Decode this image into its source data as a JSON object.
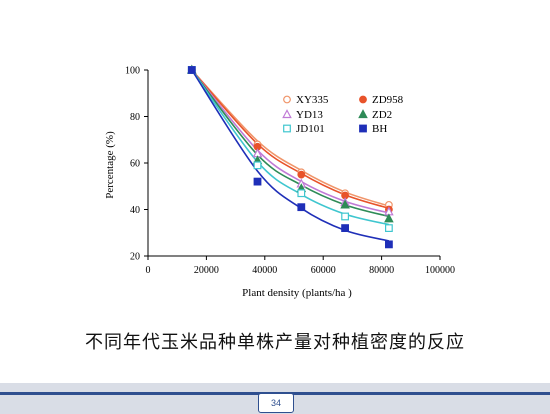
{
  "chart_data": {
    "type": "scatter",
    "title": "",
    "xlabel": "Plant density (plants/ha )",
    "ylabel": "Percentage (%)",
    "xlim": [
      0,
      100000
    ],
    "ylim": [
      20,
      100
    ],
    "xticks": [
      0,
      20000,
      40000,
      60000,
      80000,
      100000
    ],
    "yticks": [
      20,
      40,
      60,
      80,
      100
    ],
    "grid": false,
    "legend_placement": "top-right",
    "series": [
      {
        "name": "XY335",
        "marker": "open-circle",
        "color": "#f0956a",
        "x": [
          15000,
          37500,
          52500,
          67500,
          82500
        ],
        "y": [
          100,
          68,
          56,
          47,
          42
        ],
        "fit_y": [
          100,
          69.5,
          56.8,
          47.5,
          41.5
        ]
      },
      {
        "name": "ZD958",
        "marker": "filled-circle",
        "color": "#e8532a",
        "x": [
          15000,
          37500,
          52500,
          67500,
          82500
        ],
        "y": [
          100,
          67,
          55,
          46,
          40
        ],
        "fit_y": [
          100,
          68.2,
          55.5,
          46.3,
          40.5
        ]
      },
      {
        "name": "YD13",
        "marker": "open-triangle",
        "color": "#c07ad6",
        "x": [
          15000,
          37500,
          52500,
          67500,
          82500
        ],
        "y": [
          100,
          64,
          51,
          43,
          39
        ],
        "fit_y": [
          100,
          65.5,
          52,
          43.5,
          38.5
        ]
      },
      {
        "name": "ZD2",
        "marker": "filled-triangle",
        "color": "#2e8b57",
        "x": [
          15000,
          37500,
          52500,
          67500,
          82500
        ],
        "y": [
          100,
          61,
          49,
          42,
          36
        ],
        "fit_y": [
          100,
          63.5,
          50.5,
          42,
          37
        ]
      },
      {
        "name": "JD101",
        "marker": "open-square",
        "color": "#3fc6cf",
        "x": [
          15000,
          37500,
          52500,
          67500,
          82500
        ],
        "y": [
          100,
          59,
          47,
          37,
          32
        ],
        "fit_y": [
          100,
          60.5,
          46.5,
          38,
          33.5
        ]
      },
      {
        "name": "BH",
        "marker": "filled-square",
        "color": "#1f2fb8",
        "x": [
          15000,
          37500,
          52500,
          67500,
          82500
        ],
        "y": [
          100,
          52,
          41,
          32,
          25
        ],
        "fit_y": [
          100,
          56.5,
          40.5,
          31,
          26.5
        ]
      }
    ]
  },
  "caption": "不同年代玉米品种单株产量对种植密度的反应",
  "page_number": "34",
  "colors": {
    "axis": "#000000",
    "footer": "#2f4f8f"
  }
}
